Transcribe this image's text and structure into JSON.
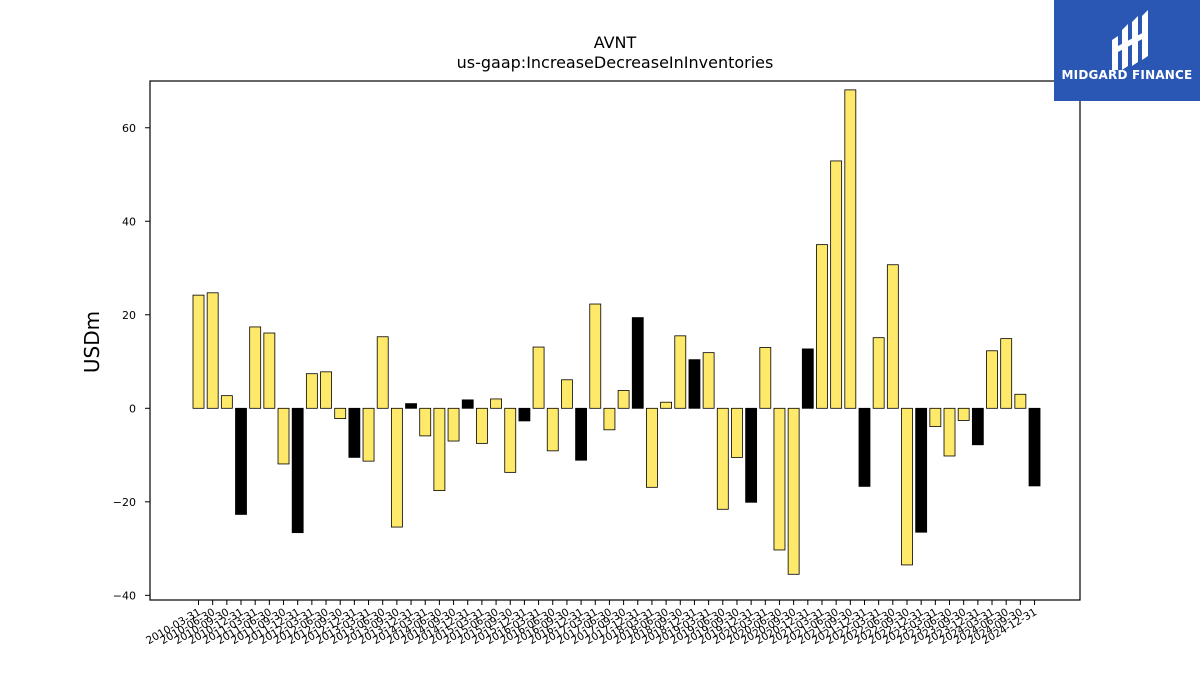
{
  "chart_data": {
    "type": "bar",
    "title": "AVNT",
    "subtitle": "us-gaap:IncreaseDecreaseInInventories",
    "xlabel": "",
    "ylabel": "USDm",
    "ylim": [
      -41,
      70
    ],
    "yticks": [
      -40,
      -20,
      0,
      20,
      40,
      60
    ],
    "grid": false,
    "colors": {
      "q123": "#ffe96b",
      "q4": "#000000",
      "edge": "#000000"
    },
    "categories": [
      "2010-03-31",
      "2010-06-30",
      "2010-09-30",
      "2010-12-31",
      "2011-03-31",
      "2011-06-30",
      "2011-09-30",
      "2011-12-31",
      "2012-03-31",
      "2012-06-30",
      "2012-09-30",
      "2012-12-31",
      "2013-03-31",
      "2013-06-30",
      "2013-09-30",
      "2013-12-31",
      "2014-03-31",
      "2014-06-30",
      "2014-09-30",
      "2014-12-31",
      "2015-03-31",
      "2015-06-30",
      "2015-09-30",
      "2015-12-31",
      "2016-03-31",
      "2016-06-30",
      "2016-09-30",
      "2016-12-31",
      "2017-03-31",
      "2017-06-30",
      "2017-09-30",
      "2017-12-31",
      "2018-03-31",
      "2018-06-30",
      "2018-09-30",
      "2018-12-31",
      "2019-03-31",
      "2019-06-30",
      "2019-09-30",
      "2019-12-31",
      "2020-03-31",
      "2020-06-30",
      "2020-09-30",
      "2020-12-31",
      "2021-03-31",
      "2021-06-30",
      "2021-09-30",
      "2021-12-31",
      "2022-03-31",
      "2022-06-30",
      "2022-09-30",
      "2022-12-31",
      "2023-03-31",
      "2023-06-30",
      "2023-09-30",
      "2023-12-31",
      "2024-03-31",
      "2024-06-30",
      "2024-09-30",
      "2024-12-31"
    ],
    "values": [
      24.2,
      24.7,
      2.7,
      -22.7,
      17.4,
      16.1,
      -11.9,
      -26.6,
      7.4,
      7.8,
      -2.2,
      -10.5,
      -11.3,
      15.3,
      -25.4,
      1.0,
      -5.9,
      -17.6,
      -7.0,
      1.8,
      -7.5,
      2.0,
      -13.7,
      -2.7,
      13.1,
      -9.1,
      6.1,
      -11.1,
      22.3,
      -4.6,
      3.8,
      19.4,
      -16.9,
      1.3,
      15.5,
      10.4,
      11.9,
      -21.6,
      -10.5,
      -20.1,
      13.0,
      -30.3,
      -35.5,
      12.7,
      35.0,
      52.9,
      68.1,
      -16.7,
      15.1,
      30.7,
      -33.5,
      -26.5,
      -3.9,
      -10.2,
      -2.6,
      -7.8,
      12.3,
      14.9,
      3.0,
      -16.6
    ]
  },
  "logo": {
    "text": "MIDGARD FINANCE"
  }
}
